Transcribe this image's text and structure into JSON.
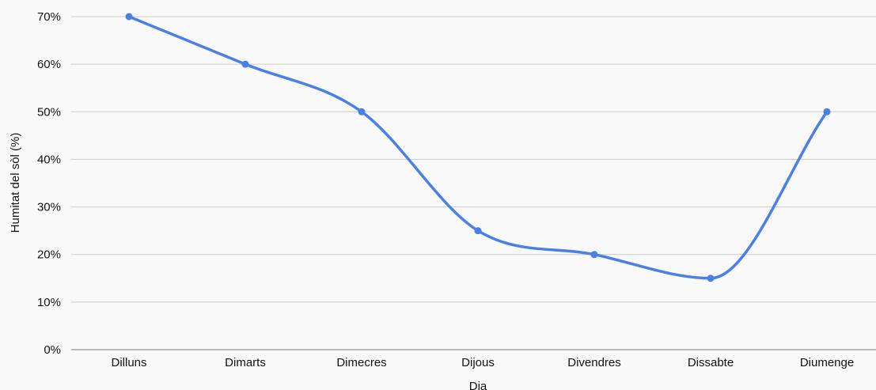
{
  "chart_data": {
    "type": "line",
    "title": "",
    "xlabel": "Dia",
    "ylabel": "Humitat del sòl (%)",
    "categories": [
      "Dilluns",
      "Dimarts",
      "Dimecres",
      "Dijous",
      "Divendres",
      "Dissabte",
      "Diumenge"
    ],
    "series": [
      {
        "values": [
          70,
          60,
          50,
          25,
          20,
          15,
          50
        ]
      }
    ],
    "yticks": [
      "0%",
      "10%",
      "20%",
      "30%",
      "40%",
      "50%",
      "60%",
      "70%"
    ],
    "ylim": [
      0,
      70
    ],
    "grid": true,
    "legend": "none",
    "line_color": "#4a7fe8",
    "grid_color": "#cccccc",
    "axis_color": "#777777",
    "curve": "smooth"
  }
}
